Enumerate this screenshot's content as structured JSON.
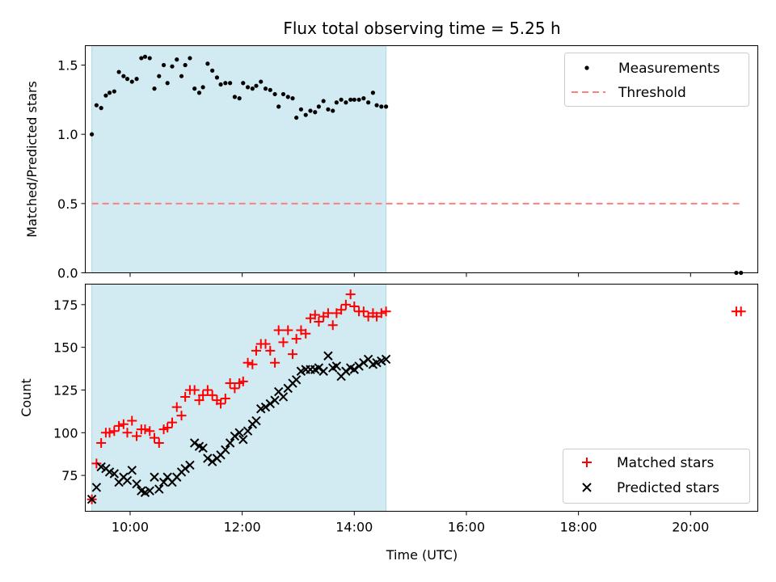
{
  "title": "Flux total observing time = 5.25 h",
  "colors": {
    "measurement": "#000000",
    "threshold": "#ff7f7f",
    "matched": "#ff0000",
    "predicted": "#000000",
    "observing_span": "#add8e6"
  },
  "chart_data": [
    {
      "type": "scatter",
      "title": "Flux total observing time = 5.25 h",
      "ylabel": "Matched/Predicted stars",
      "xlabel": "",
      "xlim": [
        "09:12",
        "21:12"
      ],
      "ylim": [
        0,
        1.64
      ],
      "yticks": [
        "0.0",
        "0.5",
        "1.0",
        "1.5"
      ],
      "ytick_values": [
        0,
        0.5,
        1.0,
        1.5
      ],
      "observing_span": [
        "09:19",
        "14:34"
      ],
      "legend_position": "upper-right",
      "legend": [
        "Measurements",
        "Threshold"
      ],
      "threshold": {
        "name": "Threshold",
        "y": 0.5,
        "x_start": "09:19",
        "x_end": "20:54"
      },
      "series": [
        {
          "name": "Measurements",
          "x": [
            "09:19",
            "09:24",
            "09:29",
            "09:34",
            "09:38",
            "09:43",
            "09:48",
            "09:53",
            "09:57",
            "10:02",
            "10:07",
            "10:12",
            "10:16",
            "10:21",
            "10:26",
            "10:31",
            "10:36",
            "10:40",
            "10:45",
            "10:50",
            "10:55",
            "10:59",
            "11:04",
            "11:09",
            "11:14",
            "11:18",
            "11:23",
            "11:28",
            "11:33",
            "11:37",
            "11:42",
            "11:47",
            "11:52",
            "11:57",
            "12:01",
            "12:06",
            "12:11",
            "12:15",
            "12:20",
            "12:25",
            "12:30",
            "12:35",
            "12:39",
            "12:44",
            "12:49",
            "12:54",
            "12:58",
            "13:03",
            "13:08",
            "13:13",
            "13:18",
            "13:22",
            "13:27",
            "13:32",
            "13:37",
            "13:41",
            "13:46",
            "13:51",
            "13:56",
            "14:00",
            "14:05",
            "14:10",
            "14:15",
            "14:20",
            "14:24",
            "14:29",
            "14:34",
            "20:49",
            "20:54"
          ],
          "y": [
            1.0,
            1.21,
            1.19,
            1.28,
            1.3,
            1.31,
            1.45,
            1.42,
            1.4,
            1.38,
            1.4,
            1.55,
            1.56,
            1.55,
            1.33,
            1.42,
            1.5,
            1.37,
            1.49,
            1.54,
            1.42,
            1.5,
            1.55,
            1.33,
            1.3,
            1.34,
            1.51,
            1.46,
            1.41,
            1.36,
            1.37,
            1.37,
            1.27,
            1.26,
            1.37,
            1.34,
            1.33,
            1.35,
            1.38,
            1.33,
            1.32,
            1.29,
            1.2,
            1.29,
            1.27,
            1.26,
            1.12,
            1.18,
            1.14,
            1.17,
            1.16,
            1.2,
            1.24,
            1.18,
            1.17,
            1.23,
            1.25,
            1.23,
            1.25,
            1.25,
            1.25,
            1.26,
            1.23,
            1.3,
            1.21,
            1.2,
            1.2,
            0,
            0
          ]
        }
      ]
    },
    {
      "type": "scatter",
      "xlabel": "Time (UTC)",
      "ylabel": "Count",
      "xlim": [
        "09:12",
        "21:12"
      ],
      "ylim": [
        54,
        187
      ],
      "yticks": [
        "75",
        "100",
        "125",
        "150",
        "175"
      ],
      "ytick_values": [
        75,
        100,
        125,
        150,
        175
      ],
      "xticks": [
        "10:00",
        "12:00",
        "14:00",
        "16:00",
        "18:00",
        "20:00"
      ],
      "observing_span": [
        "09:19",
        "14:34"
      ],
      "legend_position": "lower-right",
      "legend": [
        "Matched stars",
        "Predicted stars"
      ],
      "series": [
        {
          "name": "Matched stars",
          "x": [
            "09:19",
            "09:24",
            "09:29",
            "09:34",
            "09:38",
            "09:43",
            "09:48",
            "09:53",
            "09:57",
            "10:02",
            "10:07",
            "10:12",
            "10:16",
            "10:21",
            "10:26",
            "10:31",
            "10:36",
            "10:40",
            "10:45",
            "10:50",
            "10:55",
            "10:59",
            "11:04",
            "11:09",
            "11:14",
            "11:18",
            "11:23",
            "11:28",
            "11:33",
            "11:37",
            "11:42",
            "11:47",
            "11:52",
            "11:57",
            "12:01",
            "12:06",
            "12:11",
            "12:15",
            "12:20",
            "12:25",
            "12:30",
            "12:35",
            "12:39",
            "12:44",
            "12:49",
            "12:54",
            "12:58",
            "13:03",
            "13:08",
            "13:13",
            "13:18",
            "13:22",
            "13:27",
            "13:32",
            "13:37",
            "13:41",
            "13:46",
            "13:51",
            "13:56",
            "14:00",
            "14:05",
            "14:10",
            "14:15",
            "14:20",
            "14:24",
            "14:29",
            "14:34",
            "20:49",
            "20:54"
          ],
          "y": [
            61,
            82,
            94,
            100,
            100,
            101,
            104,
            105,
            100,
            107,
            98,
            102,
            102,
            101,
            97,
            94,
            102,
            103,
            106,
            115,
            110,
            121,
            125,
            125,
            119,
            122,
            125,
            122,
            119,
            117,
            120,
            129,
            126,
            129,
            130,
            141,
            140,
            148,
            152,
            152,
            148,
            141,
            160,
            153,
            160,
            146,
            155,
            160,
            158,
            167,
            169,
            165,
            168,
            170,
            163,
            170,
            172,
            175,
            181,
            174,
            171,
            171,
            168,
            170,
            168,
            170,
            171,
            171,
            171
          ]
        },
        {
          "name": "Predicted stars",
          "x": [
            "09:19",
            "09:24",
            "09:29",
            "09:34",
            "09:38",
            "09:43",
            "09:48",
            "09:53",
            "09:57",
            "10:02",
            "10:07",
            "10:12",
            "10:16",
            "10:21",
            "10:26",
            "10:31",
            "10:36",
            "10:40",
            "10:45",
            "10:50",
            "10:55",
            "10:59",
            "11:04",
            "11:09",
            "11:14",
            "11:18",
            "11:23",
            "11:28",
            "11:33",
            "11:37",
            "11:42",
            "11:47",
            "11:52",
            "11:57",
            "12:01",
            "12:06",
            "12:11",
            "12:15",
            "12:20",
            "12:25",
            "12:30",
            "12:35",
            "12:39",
            "12:44",
            "12:49",
            "12:54",
            "12:58",
            "13:03",
            "13:08",
            "13:13",
            "13:18",
            "13:22",
            "13:27",
            "13:32",
            "13:37",
            "13:41",
            "13:46",
            "13:51",
            "13:56",
            "14:00",
            "14:05",
            "14:10",
            "14:15",
            "14:20",
            "14:24",
            "14:29",
            "14:34"
          ],
          "y": [
            61,
            68,
            80,
            79,
            77,
            76,
            71,
            74,
            72,
            78,
            70,
            66,
            65,
            66,
            74,
            67,
            71,
            74,
            71,
            74,
            77,
            79,
            81,
            94,
            92,
            91,
            85,
            83,
            85,
            87,
            90,
            94,
            98,
            100,
            96,
            101,
            105,
            107,
            114,
            115,
            117,
            119,
            124,
            121,
            126,
            129,
            131,
            136,
            137,
            137,
            137,
            138,
            136,
            145,
            138,
            139,
            133,
            136,
            138,
            137,
            139,
            141,
            143,
            140,
            141,
            142,
            143
          ]
        }
      ]
    }
  ]
}
